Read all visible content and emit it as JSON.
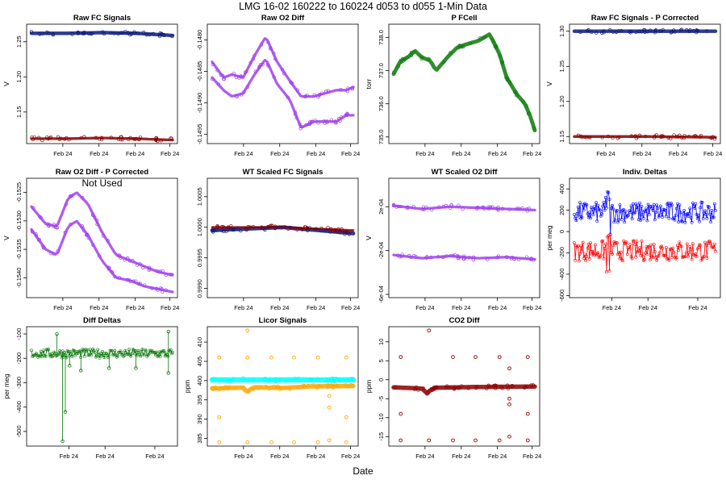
{
  "title": "LMG   16-02    160222 to 160224    d053 to d055   1-Min Data",
  "xlabel": "Date",
  "colors": {
    "navy": "#0a1a7a",
    "darkred": "#8b0000",
    "purple": "#a040ee",
    "green": "#0a7a0a",
    "red": "#ff0000",
    "blue": "#0000ff",
    "orange": "#ffa500",
    "cyan": "#00ffff",
    "axis": "#000000"
  },
  "chart_data": [
    {
      "id": "raw-fc-signals",
      "type": "scatter",
      "title": "Raw FC Signals",
      "ylabel": "V",
      "ylim": [
        1.105,
        1.275
      ],
      "yticks": [
        1.15,
        1.2,
        1.25
      ],
      "ytick_labels": [
        "1.15",
        "1.20",
        "1.25"
      ],
      "xtick_labels": [
        "Feb 24",
        "Feb 24",
        "Feb 24",
        "Feb 24"
      ],
      "series": [
        {
          "name": "FC1",
          "color": "navy",
          "x": [
            0,
            0.25,
            0.5,
            0.75,
            1
          ],
          "y": [
            1.262,
            1.262,
            1.263,
            1.262,
            1.259
          ],
          "width": 2.0
        },
        {
          "name": "FC2",
          "color": "darkred",
          "x": [
            0,
            0.25,
            0.5,
            0.75,
            1
          ],
          "y": [
            1.112,
            1.112,
            1.113,
            1.112,
            1.11
          ],
          "width": 1.5
        }
      ]
    },
    {
      "id": "raw-o2-diff",
      "type": "scatter",
      "title": "Raw O2 Diff",
      "ylabel": "",
      "ylim": [
        -0.14965,
        -0.14775
      ],
      "yticks": [
        -0.1495,
        -0.149,
        -0.1485,
        -0.148
      ],
      "ytick_labels": [
        "-0.1495",
        "-0.1490",
        "-0.1485",
        "-0.1480"
      ],
      "xtick_labels": [
        "Feb 24",
        "Feb 24",
        "Feb 24",
        "Feb 24"
      ],
      "series": [
        {
          "name": "upper",
          "color": "purple",
          "x": [
            0,
            0.08,
            0.14,
            0.22,
            0.3,
            0.38,
            0.46,
            0.55,
            0.63,
            0.72,
            0.8,
            0.88,
            0.95,
            1
          ],
          "y": [
            -0.14835,
            -0.1486,
            -0.14855,
            -0.1486,
            -0.14825,
            -0.14795,
            -0.14835,
            -0.14865,
            -0.1489,
            -0.1489,
            -0.14885,
            -0.1488,
            -0.1488,
            -0.14875
          ],
          "width": 1.5
        },
        {
          "name": "lower",
          "color": "purple",
          "x": [
            0,
            0.08,
            0.14,
            0.22,
            0.3,
            0.38,
            0.46,
            0.55,
            0.63,
            0.72,
            0.8,
            0.88,
            0.95,
            1
          ],
          "y": [
            -0.1486,
            -0.1488,
            -0.1489,
            -0.14885,
            -0.14855,
            -0.1483,
            -0.1487,
            -0.14895,
            -0.1494,
            -0.1493,
            -0.1493,
            -0.1493,
            -0.1492,
            -0.1492
          ],
          "width": 1.5
        }
      ]
    },
    {
      "id": "p-fcell",
      "type": "scatter",
      "title": "P FCell",
      "ylabel": "torr",
      "ylim": [
        734.8,
        738.4
      ],
      "yticks": [
        735,
        736,
        737,
        738
      ],
      "ytick_labels": [
        "735.0",
        "736.0",
        "737.0",
        "738.0"
      ],
      "xtick_labels": [
        "Feb 24",
        "Feb 24",
        "Feb 24",
        "Feb 24"
      ],
      "series": [
        {
          "name": "pressure",
          "color": "green",
          "x": [
            0,
            0.05,
            0.1,
            0.15,
            0.2,
            0.26,
            0.3,
            0.38,
            0.45,
            0.52,
            0.6,
            0.68,
            0.75,
            0.8,
            0.87,
            0.93,
            0.97,
            1
          ],
          "y": [
            736.9,
            737.3,
            737.4,
            737.6,
            737.4,
            737.3,
            737.0,
            737.4,
            737.7,
            737.8,
            737.9,
            738.1,
            737.5,
            736.8,
            736.3,
            736.0,
            735.6,
            735.2
          ],
          "width": 2.2
        }
      ]
    },
    {
      "id": "raw-fc-signals-p-corrected",
      "type": "scatter",
      "title": "Raw FC Signals - P Corrected",
      "ylabel": "V",
      "ylim": [
        1.14,
        1.31
      ],
      "yticks": [
        1.15,
        1.2,
        1.25,
        1.3
      ],
      "ytick_labels": [
        "1.15",
        "1.20",
        "1.25",
        "1.30"
      ],
      "xtick_labels": [
        "Feb 24",
        "Feb 24",
        "Feb 24",
        "Feb 24"
      ],
      "series": [
        {
          "name": "FC1",
          "color": "navy",
          "x": [
            0,
            0.5,
            1
          ],
          "y": [
            1.3,
            1.3,
            1.3
          ],
          "width": 2.0
        },
        {
          "name": "FC2",
          "color": "darkred",
          "x": [
            0,
            0.5,
            1
          ],
          "y": [
            1.15,
            1.15,
            1.149
          ],
          "width": 1.6
        }
      ]
    },
    {
      "id": "raw-o2-diff-p-corrected",
      "type": "scatter",
      "title": "Raw O2 Diff - P Corrected",
      "ylabel": "V",
      "annotation": "Not Used",
      "ylim": [
        -0.15435,
        -0.15225
      ],
      "yticks": [
        -0.154,
        -0.1535,
        -0.153,
        -0.1525
      ],
      "ytick_labels": [
        "-0.1540",
        "-0.1535",
        "-0.1530",
        "-0.1525"
      ],
      "xtick_labels": [
        "Feb 24",
        "Feb 24",
        "Feb 24",
        "Feb 24"
      ],
      "series": [
        {
          "name": "upper",
          "color": "purple",
          "x": [
            0,
            0.1,
            0.18,
            0.26,
            0.32,
            0.4,
            0.5,
            0.6,
            0.7,
            0.8,
            0.9,
            1
          ],
          "y": [
            -0.15275,
            -0.15305,
            -0.1531,
            -0.1526,
            -0.1525,
            -0.1527,
            -0.1532,
            -0.1536,
            -0.1537,
            -0.1538,
            -0.1539,
            -0.15395
          ],
          "width": 1.5
        },
        {
          "name": "lower",
          "color": "purple",
          "x": [
            0,
            0.1,
            0.18,
            0.26,
            0.32,
            0.4,
            0.5,
            0.6,
            0.7,
            0.8,
            0.9,
            1
          ],
          "y": [
            -0.15315,
            -0.1535,
            -0.1536,
            -0.1531,
            -0.153,
            -0.15325,
            -0.1537,
            -0.154,
            -0.15405,
            -0.15415,
            -0.1542,
            -0.15425
          ],
          "width": 1.5
        }
      ]
    },
    {
      "id": "wt-scaled-fc-signals",
      "type": "scatter",
      "title": "WT Scaled FC Signals",
      "ylabel": "",
      "ylim": [
        0.99885,
        1.0008
      ],
      "yticks": [
        0.999,
        0.9995,
        1.0,
        1.0005
      ],
      "ytick_labels": [
        "0.9990",
        "0.9995",
        "1.0000",
        "1.0005"
      ],
      "xtick_labels": [
        "Feb 24",
        "Feb 24",
        "Feb 24",
        "Feb 24"
      ],
      "series": [
        {
          "name": "FC1",
          "color": "navy",
          "x": [
            0,
            0.5,
            1
          ],
          "y": [
            0.99995,
            1.0,
            0.9999
          ],
          "width": 2.2
        },
        {
          "name": "FC2",
          "color": "darkred",
          "x": [
            0,
            0.5,
            1
          ],
          "y": [
            1.0,
            1.0,
            0.99995
          ],
          "width": 1.2
        }
      ]
    },
    {
      "id": "wt-scaled-o2-diff",
      "type": "scatter",
      "title": "WT Scaled O2 Diff",
      "ylabel": "V",
      "ylim": [
        -0.00063,
        0.00046
      ],
      "yticks": [
        -0.0006,
        -0.0002,
        0.0002
      ],
      "ytick_labels": [
        "-6e-04",
        "-2e-04",
        "2e-04"
      ],
      "xtick_labels": [
        "Feb 24",
        "Feb 24",
        "Feb 24",
        "Feb 24"
      ],
      "series": [
        {
          "name": "upper",
          "color": "purple",
          "x": [
            0,
            0.2,
            0.4,
            0.6,
            0.8,
            1
          ],
          "y": [
            0.00021,
            0.00018,
            0.0002,
            0.00019,
            0.00018,
            0.00017
          ],
          "width": 1.5
        },
        {
          "name": "lower",
          "color": "purple",
          "x": [
            0,
            0.2,
            0.4,
            0.6,
            0.8,
            1
          ],
          "y": [
            -0.00024,
            -0.00027,
            -0.00025,
            -0.00027,
            -0.00026,
            -0.00028
          ],
          "width": 1.5
        }
      ]
    },
    {
      "id": "indiv-deltas",
      "type": "line",
      "title": "Indiv. Deltas",
      "ylabel": "per meg",
      "ylim": [
        -620,
        500
      ],
      "yticks": [
        -600,
        -400,
        -200,
        0,
        200,
        400
      ],
      "ytick_labels": [
        "-600",
        "-400",
        "-200",
        "0",
        "200",
        "400"
      ],
      "xtick_labels": [
        "Feb 24",
        "Feb 24",
        "Feb 24"
      ],
      "series": [
        {
          "name": "FC1",
          "color": "blue",
          "center": 180,
          "spread": 95
        },
        {
          "name": "FC2",
          "color": "red",
          "center": -180,
          "spread": 95
        }
      ]
    },
    {
      "id": "diff-deltas",
      "type": "line",
      "title": "Diff Deltas",
      "ylabel": "per meg",
      "ylim": [
        -560,
        -70
      ],
      "yticks": [
        -500,
        -400,
        -300,
        -200,
        -100
      ],
      "ytick_labels": [
        "-500",
        "-400",
        "-300",
        "-200",
        "-100"
      ],
      "xtick_labels": [
        "Feb 24",
        "Feb 24",
        "Feb 24"
      ],
      "series": [
        {
          "name": "diff",
          "color": "green",
          "center": -180,
          "spread": 18
        }
      ],
      "spikes": [
        [
          0.18,
          -100
        ],
        [
          0.22,
          -540
        ],
        [
          0.24,
          -420
        ],
        [
          0.27,
          -230
        ],
        [
          0.35,
          -250
        ],
        [
          0.55,
          -240
        ],
        [
          0.74,
          -240
        ],
        [
          0.97,
          -90
        ],
        [
          0.97,
          -260
        ]
      ]
    },
    {
      "id": "licor-signals",
      "type": "scatter",
      "title": "Licor Signals",
      "ylabel": "ppm",
      "ylim": [
        383,
        414
      ],
      "yticks": [
        385,
        390,
        395,
        400,
        405,
        410
      ],
      "ytick_labels": [
        "385",
        "390",
        "395",
        "400",
        "405",
        "410"
      ],
      "xtick_labels": [
        "Feb 24",
        "Feb 24",
        "Feb 24",
        "Feb 24"
      ],
      "series": [
        {
          "name": "reference",
          "color": "cyan",
          "x": [
            0,
            1
          ],
          "y": [
            400.2,
            400.2
          ],
          "width": 3.0
        },
        {
          "name": "sample",
          "color": "orange",
          "x": [
            0,
            0.22,
            0.25,
            0.26,
            0.3,
            0.5,
            0.7,
            1
          ],
          "y": [
            398.0,
            398.2,
            396.8,
            397.6,
            398.3,
            398.1,
            398.5,
            398.6
          ],
          "width": 2.5
        }
      ],
      "outliers": [
        [
          0.25,
          413
        ],
        [
          0.25,
          406
        ],
        [
          0.25,
          384
        ],
        [
          0.42,
          406
        ],
        [
          0.42,
          384
        ],
        [
          0.58,
          406
        ],
        [
          0.58,
          384
        ],
        [
          0.75,
          406
        ],
        [
          0.75,
          384
        ],
        [
          0.83,
          393
        ],
        [
          0.83,
          396
        ],
        [
          0.83,
          384.5
        ],
        [
          0.95,
          406
        ],
        [
          0.95,
          384
        ],
        [
          0.05,
          406
        ],
        [
          0.05,
          384
        ],
        [
          0.05,
          390.5
        ],
        [
          0.95,
          390.5
        ]
      ]
    },
    {
      "id": "co2-diff",
      "type": "scatter",
      "title": "CO2 Diff",
      "ylabel": "ppm",
      "ylim": [
        -17.5,
        14
      ],
      "yticks": [
        -15,
        -10,
        -5,
        0,
        5,
        10
      ],
      "ytick_labels": [
        "-15",
        "-10",
        "-5",
        "0",
        "5",
        "10"
      ],
      "xtick_labels": [
        "Feb 24",
        "Feb 24",
        "Feb 24",
        "Feb 24"
      ],
      "series": [
        {
          "name": "diff",
          "color": "darkred",
          "x": [
            0,
            0.2,
            0.24,
            0.25,
            0.3,
            0.6,
            1
          ],
          "y": [
            -2.0,
            -2.3,
            -3.7,
            -3.0,
            -2.1,
            -1.9,
            -1.8
          ],
          "width": 2.5
        }
      ],
      "outliers": [
        [
          0.25,
          13
        ],
        [
          0.05,
          6
        ],
        [
          0.05,
          -16
        ],
        [
          0.25,
          -16
        ],
        [
          0.42,
          6
        ],
        [
          0.42,
          -16
        ],
        [
          0.58,
          6
        ],
        [
          0.58,
          -16
        ],
        [
          0.75,
          6
        ],
        [
          0.75,
          -16
        ],
        [
          0.82,
          -5
        ],
        [
          0.82,
          -6.5
        ],
        [
          0.82,
          -15
        ],
        [
          0.95,
          6
        ],
        [
          0.95,
          -16
        ],
        [
          0.05,
          -9
        ],
        [
          0.95,
          -9
        ],
        [
          0.82,
          3
        ]
      ]
    }
  ]
}
